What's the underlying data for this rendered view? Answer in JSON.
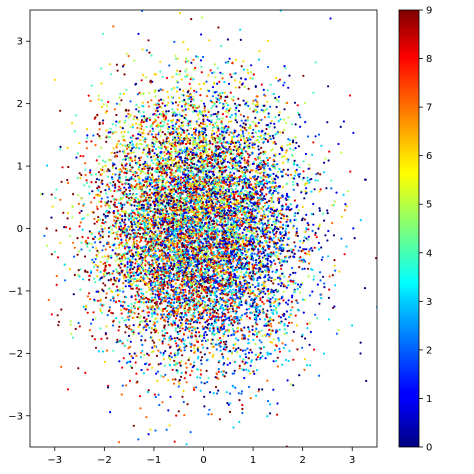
{
  "chart_data": {
    "type": "scatter",
    "title": "",
    "xlabel": "",
    "ylabel": "",
    "xlim": [
      -3.5,
      3.5
    ],
    "ylim": [
      -3.5,
      3.5
    ],
    "x_ticks": [
      -3,
      -2,
      -1,
      0,
      1,
      2,
      3
    ],
    "y_ticks": [
      -3,
      -2,
      -1,
      0,
      1,
      2,
      3
    ],
    "x_tick_labels": [
      "−3",
      "−2",
      "−1",
      "0",
      "1",
      "2",
      "3"
    ],
    "y_tick_labels": [
      "−3",
      "−2",
      "−1",
      "0",
      "1",
      "2",
      "3"
    ],
    "grid": false,
    "colormap": "jet",
    "color_range": [
      0,
      9
    ],
    "colorbar_ticks": [
      0,
      1,
      2,
      3,
      4,
      5,
      6,
      7,
      8,
      9
    ],
    "colorbar_tick_labels": [
      "0",
      "1",
      "2",
      "3",
      "4",
      "5",
      "6",
      "7",
      "8",
      "9"
    ],
    "point_cloud": {
      "distribution": "approximately bivariate normal, centered near (0, 0), std ≈ 1 on each axis",
      "approx_point_count": 20000,
      "color_values": "integer class labels 0–9, interleaved throughout the cloud",
      "regions": [
        {
          "class_values": [
            4,
            5,
            6
          ],
          "region": "upper-left of the cloud",
          "center": [
            -0.8,
            1.0
          ]
        },
        {
          "class_values": [
            1,
            2,
            3
          ],
          "region": "lower-center of the cloud",
          "center": [
            0.3,
            -1.2
          ]
        },
        {
          "class_values": [
            7,
            8,
            9
          ],
          "region": "left-center band",
          "center": [
            -1.2,
            -0.3
          ]
        },
        {
          "class_values": [
            0,
            1
          ],
          "region": "center-right",
          "center": [
            0.6,
            0.2
          ]
        }
      ]
    }
  }
}
